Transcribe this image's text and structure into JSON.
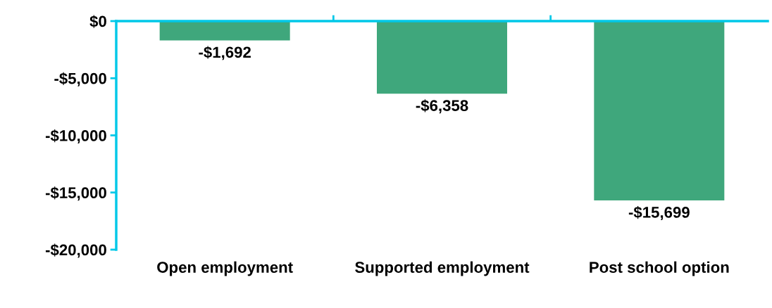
{
  "chart_data": {
    "type": "bar",
    "categories": [
      "Open employment",
      "Supported employment",
      "Post school option"
    ],
    "values": [
      -1692,
      -6358,
      -15699
    ],
    "color": "#3fa77c",
    "value_labels": [
      "-$1,692",
      "-$6,358",
      "-$15,699"
    ],
    "ylim": [
      -20000,
      0
    ],
    "yticks": [
      {
        "value": 0,
        "label": "$0"
      },
      {
        "value": -5000,
        "label": "-$5,000"
      },
      {
        "value": -10000,
        "label": "-$10,000"
      },
      {
        "value": -15000,
        "label": "-$15,000"
      },
      {
        "value": -20000,
        "label": "-$20,000"
      }
    ],
    "grid": false
  }
}
